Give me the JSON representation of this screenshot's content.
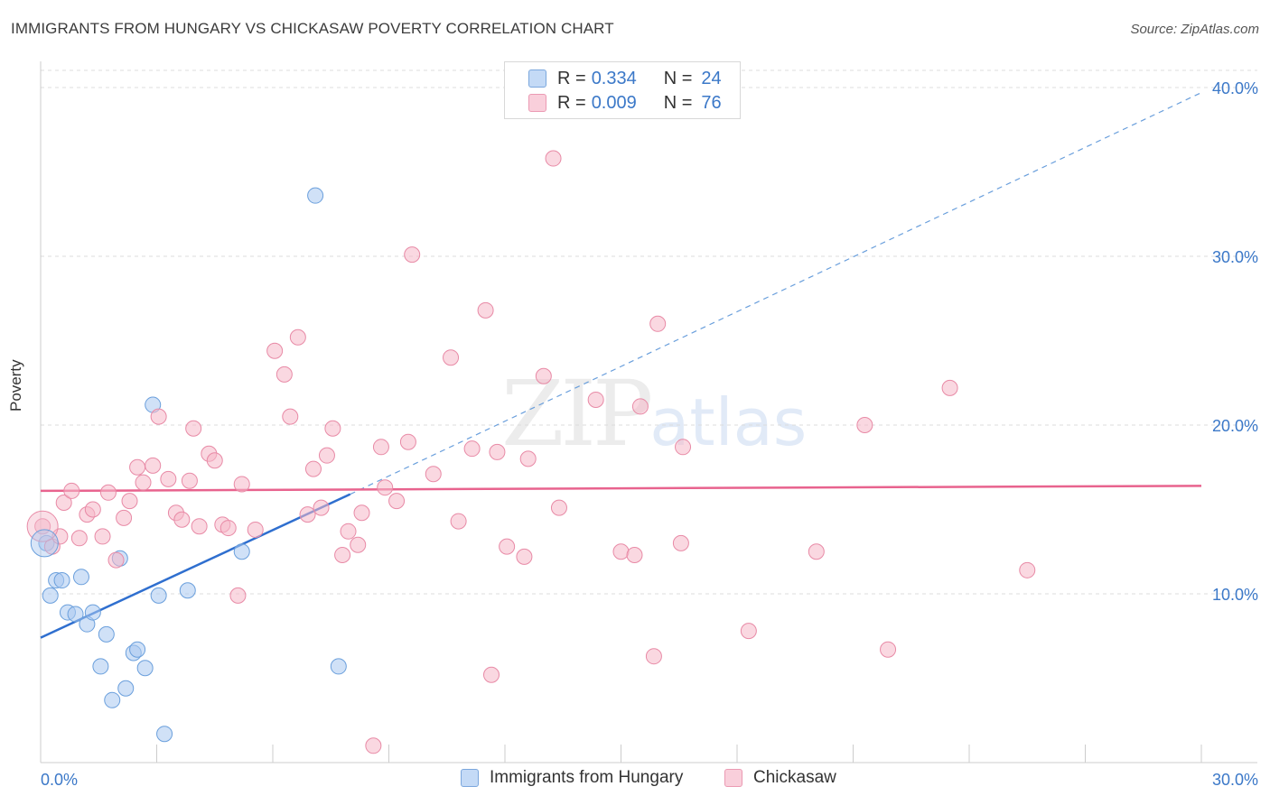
{
  "title": "IMMIGRANTS FROM HUNGARY VS CHICKASAW POVERTY CORRELATION CHART",
  "source": "Source: ZipAtlas.com",
  "watermark": {
    "zip": "ZIP",
    "atlas": "atlas"
  },
  "legend": {
    "rows": [
      {
        "r_label": "R =",
        "r_value": "0.334",
        "n_label": "N =",
        "n_value": "24",
        "color": "#a9c8f0"
      },
      {
        "r_label": "R =",
        "r_value": "0.009",
        "n_label": "N =",
        "n_value": "76",
        "color": "#f5b8c9"
      }
    ]
  },
  "bottom_legend": [
    {
      "label": "Immigrants from Hungary",
      "color": "#a9c8f0"
    },
    {
      "label": "Chickasaw",
      "color": "#f5b8c9"
    }
  ],
  "chart_data": {
    "type": "scatter",
    "title": "IMMIGRANTS FROM HUNGARY VS CHICKASAW POVERTY CORRELATION CHART",
    "xlabel": "",
    "ylabel": "Poverty",
    "xlim": [
      0,
      30
    ],
    "ylim": [
      0,
      40
    ],
    "x_tick_labels": [
      "0.0%",
      "30.0%"
    ],
    "y_ticks": [
      10,
      20,
      30,
      40
    ],
    "y_tick_labels": [
      "10.0%",
      "20.0%",
      "30.0%",
      "40.0%"
    ],
    "grid": true,
    "series": [
      {
        "name": "Immigrants from Hungary",
        "color": "#a9c8f0",
        "stroke": "#6a9fdc",
        "points": [
          [
            0.15,
            13.0
          ],
          [
            0.25,
            9.9
          ],
          [
            0.4,
            10.8
          ],
          [
            0.55,
            10.8
          ],
          [
            0.7,
            8.9
          ],
          [
            0.9,
            8.8
          ],
          [
            1.05,
            11.0
          ],
          [
            1.2,
            8.2
          ],
          [
            1.35,
            8.9
          ],
          [
            1.55,
            5.7
          ],
          [
            1.7,
            7.6
          ],
          [
            1.85,
            3.7
          ],
          [
            2.05,
            12.1
          ],
          [
            2.2,
            4.4
          ],
          [
            2.4,
            6.5
          ],
          [
            2.5,
            6.7
          ],
          [
            2.7,
            5.6
          ],
          [
            2.9,
            21.2
          ],
          [
            3.05,
            9.9
          ],
          [
            3.2,
            1.7
          ],
          [
            3.8,
            10.2
          ],
          [
            5.2,
            12.5
          ],
          [
            7.1,
            33.6
          ],
          [
            7.7,
            5.7
          ]
        ],
        "trend": {
          "x": [
            0,
            8.0
          ],
          "y": [
            7.4,
            15.9
          ],
          "extend_to": [
            30,
            39.7
          ]
        }
      },
      {
        "name": "Chickasaw",
        "color": "#f5b8c9",
        "stroke": "#e88aa6",
        "points": [
          [
            0.05,
            14.0
          ],
          [
            0.3,
            12.8
          ],
          [
            0.5,
            13.4
          ],
          [
            0.6,
            15.4
          ],
          [
            0.8,
            16.1
          ],
          [
            1.0,
            13.3
          ],
          [
            1.2,
            14.7
          ],
          [
            1.35,
            15.0
          ],
          [
            1.6,
            13.4
          ],
          [
            1.75,
            16.0
          ],
          [
            1.95,
            12.0
          ],
          [
            2.15,
            14.5
          ],
          [
            2.3,
            15.5
          ],
          [
            2.5,
            17.5
          ],
          [
            2.65,
            16.6
          ],
          [
            2.9,
            17.6
          ],
          [
            3.05,
            20.5
          ],
          [
            3.3,
            16.8
          ],
          [
            3.5,
            14.8
          ],
          [
            3.65,
            14.4
          ],
          [
            3.85,
            16.7
          ],
          [
            3.95,
            19.8
          ],
          [
            4.1,
            14.0
          ],
          [
            4.35,
            18.3
          ],
          [
            4.5,
            17.9
          ],
          [
            4.7,
            14.1
          ],
          [
            4.85,
            13.9
          ],
          [
            5.1,
            9.9
          ],
          [
            5.2,
            16.5
          ],
          [
            5.55,
            13.8
          ],
          [
            6.05,
            24.4
          ],
          [
            6.3,
            23.0
          ],
          [
            6.45,
            20.5
          ],
          [
            6.65,
            25.2
          ],
          [
            6.9,
            14.7
          ],
          [
            7.05,
            17.4
          ],
          [
            7.25,
            15.1
          ],
          [
            7.4,
            18.2
          ],
          [
            7.55,
            19.8
          ],
          [
            7.8,
            12.3
          ],
          [
            7.95,
            13.7
          ],
          [
            8.2,
            12.9
          ],
          [
            8.3,
            14.8
          ],
          [
            8.6,
            1.0
          ],
          [
            8.8,
            18.7
          ],
          [
            8.9,
            16.3
          ],
          [
            9.2,
            15.5
          ],
          [
            9.5,
            19.0
          ],
          [
            9.6,
            30.1
          ],
          [
            10.15,
            17.1
          ],
          [
            10.6,
            24.0
          ],
          [
            10.8,
            14.3
          ],
          [
            11.15,
            18.6
          ],
          [
            11.5,
            26.8
          ],
          [
            11.65,
            5.2
          ],
          [
            11.8,
            18.4
          ],
          [
            12.05,
            12.8
          ],
          [
            12.5,
            12.2
          ],
          [
            13.0,
            22.9
          ],
          [
            13.25,
            35.8
          ],
          [
            13.4,
            15.1
          ],
          [
            14.35,
            21.5
          ],
          [
            15.0,
            12.5
          ],
          [
            15.35,
            12.3
          ],
          [
            15.85,
            6.3
          ],
          [
            15.95,
            26.0
          ],
          [
            16.6,
            18.7
          ],
          [
            16.55,
            13.0
          ],
          [
            18.3,
            7.8
          ],
          [
            20.05,
            12.5
          ],
          [
            21.3,
            20.0
          ],
          [
            21.9,
            6.7
          ],
          [
            23.5,
            22.2
          ],
          [
            25.5,
            11.4
          ],
          [
            15.5,
            21.1
          ],
          [
            12.6,
            18.0
          ]
        ],
        "trend": {
          "x": [
            0,
            30
          ],
          "y": [
            16.1,
            16.4
          ]
        }
      }
    ]
  }
}
